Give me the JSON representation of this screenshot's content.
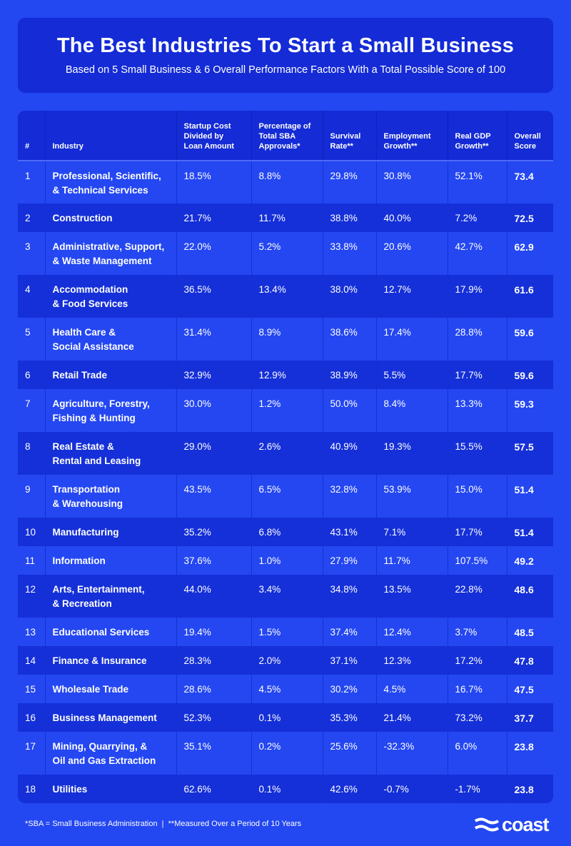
{
  "header": {
    "title": "The Best Industries To Start a Small Business",
    "subtitle": "Based on 5 Small Business & 6 Overall Performance Factors With a Total Possible Score of 100"
  },
  "table": {
    "columns": [
      "#",
      "Industry",
      "Startup Cost Divided by Loan Amount",
      "Percentage of Total SBA Approvals*",
      "Survival Rate**",
      "Employment Growth**",
      "Real GDP Growth**",
      "Overall Score"
    ],
    "rows": [
      [
        "1",
        "Professional, Scientific, & Technical Services",
        "18.5%",
        "8.8%",
        "29.8%",
        "30.8%",
        "52.1%",
        "73.4"
      ],
      [
        "2",
        "Construction",
        "21.7%",
        "11.7%",
        "38.8%",
        "40.0%",
        "7.2%",
        "72.5"
      ],
      [
        "3",
        "Administrative, Support, & Waste Management",
        "22.0%",
        "5.2%",
        "33.8%",
        "20.6%",
        "42.7%",
        "62.9"
      ],
      [
        "4",
        "Accommodation & Food Services",
        "36.5%",
        "13.4%",
        "38.0%",
        "12.7%",
        "17.9%",
        "61.6"
      ],
      [
        "5",
        "Health Care & Social Assistance",
        "31.4%",
        "8.9%",
        "38.6%",
        "17.4%",
        "28.8%",
        "59.6"
      ],
      [
        "6",
        "Retail Trade",
        "32.9%",
        "12.9%",
        "38.9%",
        "5.5%",
        "17.7%",
        "59.6"
      ],
      [
        "7",
        "Agriculture, Forestry, Fishing & Hunting",
        "30.0%",
        "1.2%",
        "50.0%",
        "8.4%",
        "13.3%",
        "59.3"
      ],
      [
        "8",
        "Real Estate & Rental and Leasing",
        "29.0%",
        "2.6%",
        "40.9%",
        "19.3%",
        "15.5%",
        "57.5"
      ],
      [
        "9",
        "Transportation & Warehousing",
        "43.5%",
        "6.5%",
        "32.8%",
        "53.9%",
        "15.0%",
        "51.4"
      ],
      [
        "10",
        "Manufacturing",
        "35.2%",
        "6.8%",
        "43.1%",
        "7.1%",
        "17.7%",
        "51.4"
      ],
      [
        "11",
        "Information",
        "37.6%",
        "1.0%",
        "27.9%",
        "11.7%",
        "107.5%",
        "49.2"
      ],
      [
        "12",
        "Arts, Entertainment, & Recreation",
        "44.0%",
        "3.4%",
        "34.8%",
        "13.5%",
        "22.8%",
        "48.6"
      ],
      [
        "13",
        "Educational Services",
        "19.4%",
        "1.5%",
        "37.4%",
        "12.4%",
        "3.7%",
        "48.5"
      ],
      [
        "14",
        "Finance & Insurance",
        "28.3%",
        "2.0%",
        "37.1%",
        "12.3%",
        "17.2%",
        "47.8"
      ],
      [
        "15",
        "Wholesale Trade",
        "28.6%",
        "4.5%",
        "30.2%",
        "4.5%",
        "16.7%",
        "47.5"
      ],
      [
        "16",
        "Business Management",
        "52.3%",
        "0.1%",
        "35.3%",
        "21.4%",
        "73.2%",
        "37.7"
      ],
      [
        "17",
        "Mining, Quarrying, & Oil and Gas Extraction",
        "35.1%",
        "0.2%",
        "25.6%",
        "-32.3%",
        "6.0%",
        "23.8"
      ],
      [
        "18",
        "Utilities",
        "62.6%",
        "0.1%",
        "42.6%",
        "-0.7%",
        "-1.7%",
        "23.8"
      ]
    ],
    "two_line_industry": {
      "1": [
        "Professional, Scientific,",
        "& Technical Services"
      ],
      "3": [
        "Administrative, Support,",
        "& Waste Management"
      ],
      "4": [
        "Accommodation",
        "& Food Services"
      ],
      "5": [
        "Health Care &",
        "Social Assistance"
      ],
      "7": [
        "Agriculture, Forestry,",
        "Fishing & Hunting"
      ],
      "8": [
        "Real Estate &",
        "Rental and Leasing"
      ],
      "9": [
        "Transportation",
        "& Warehousing"
      ],
      "12": [
        "Arts, Entertainment,",
        "& Recreation"
      ],
      "17": [
        "Mining, Quarrying, &",
        "Oil and Gas Extraction"
      ]
    }
  },
  "footer": {
    "footnote": "*SBA = Small Business Administration  |  **Measured Over a Period of 10 Years",
    "logo": "coast"
  },
  "colors": {
    "background": "#2347f1",
    "panel": "#142bd6",
    "row_dark": "#1530d8",
    "text": "#ffffff"
  }
}
